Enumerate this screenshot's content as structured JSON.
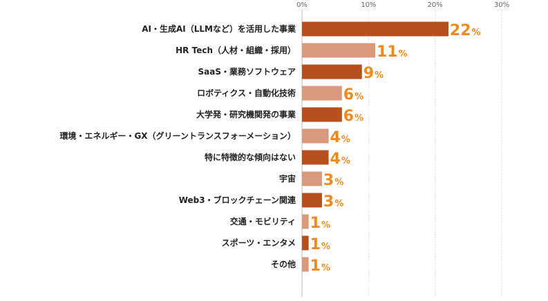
{
  "chart_data": {
    "type": "bar",
    "orientation": "horizontal",
    "categories": [
      "AI・生成AI（LLMなど）を活用した事業",
      "HR Tech（人材・組織・採用）",
      "SaaS・業務ソフトウェア",
      "ロボティクス・自動化技術",
      "大学発・研究機関発の事業",
      "環境・エネルギー・GX（グリーントランスフォーメーション）",
      "特に特徴的な傾向はない",
      "宇宙",
      "Web3・ブロックチェーン関連",
      "交通・モビリティ",
      "スポーツ・エンタメ",
      "その他"
    ],
    "values": [
      22,
      11,
      9,
      6,
      6,
      4,
      4,
      3,
      3,
      1,
      1,
      1
    ],
    "value_unit": "%",
    "xlim": [
      0,
      30
    ],
    "xticks": [
      "0%",
      "10%",
      "20%",
      "30%"
    ],
    "grid": true,
    "legend": "none",
    "bar_colors": [
      "#b7501c",
      "#d89a7a",
      "#b7501c",
      "#d89a7a",
      "#b7501c",
      "#d89a7a",
      "#b7501c",
      "#d89a7a",
      "#b7501c",
      "#d89a7a",
      "#b7501c",
      "#d89a7a"
    ],
    "label_color": "#f08a1c"
  }
}
